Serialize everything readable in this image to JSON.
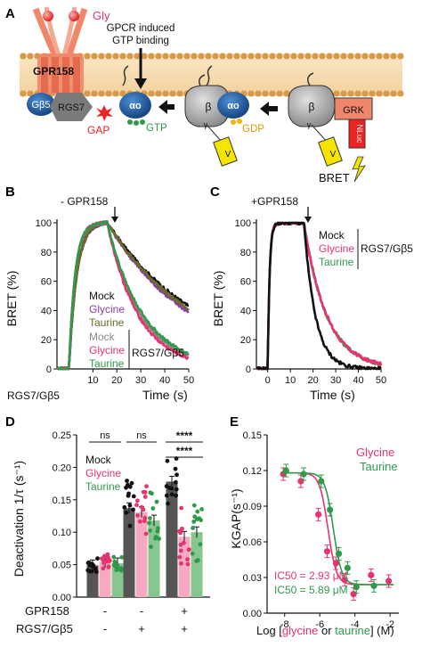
{
  "panelA": {
    "letter": "A",
    "gly": "Gly",
    "gpcr_text_1": "GPCR induced",
    "gpcr_text_2": "GTP binding",
    "gpr158": "GPR158",
    "gb5": "Gβ5",
    "rgs7": "RGS7",
    "gap": "GAP",
    "alpha": "αo",
    "gtp": "GTP",
    "gdp": "GDP",
    "beta": "β",
    "gamma": "γ",
    "v": "V",
    "grk": "GRK",
    "nluc": "NLuc",
    "bret": "BRET"
  },
  "panelB": {
    "letter": "B",
    "top_label": "- GPR158",
    "ylabel": "BRET (%)",
    "xlabel": "Time (s)",
    "bottom_left": "RGS7/Gβ5",
    "legend1": [
      "Mock",
      "Glycine",
      "Taurine"
    ],
    "legend2": [
      "Mock",
      "Glycine",
      "Taurine"
    ],
    "legend2_group": "RGS7/Gβ5",
    "xticks": [
      "10",
      "20",
      "30",
      "40",
      "50"
    ],
    "yticks": [
      "0",
      "20",
      "40",
      "60",
      "80",
      "100"
    ]
  },
  "panelC": {
    "letter": "C",
    "top_label": "+GPR158",
    "ylabel": "BRET (%)",
    "xlabel": "Time (s)",
    "legend": [
      "Mock",
      "Glycine",
      "Taurine"
    ],
    "legend_group": "RGS7/Gβ5",
    "xticks": [
      "0",
      "10",
      "20",
      "30",
      "40",
      "50"
    ],
    "yticks": [
      "0",
      "20",
      "40",
      "60",
      "80",
      "100"
    ]
  },
  "panelD": {
    "letter": "D",
    "ylabel": "Deactivation 1/τ (s⁻¹)",
    "legend": [
      "Mock",
      "Glycine",
      "Taurine"
    ],
    "sig": [
      "ns",
      "ns",
      "****",
      "****"
    ],
    "row1_label": "GPR158",
    "row2_label": "RGS7/Gβ5",
    "row1_marks": [
      "-",
      "-",
      "+"
    ],
    "row2_marks": [
      "-",
      "+",
      "+"
    ],
    "yticks": [
      "0.00",
      "0.05",
      "0.10",
      "0.15",
      "0.20",
      "0.25"
    ]
  },
  "panelE": {
    "letter": "E",
    "ylabel": "KGAP(s⁻¹)",
    "legend": [
      "Glycine",
      "Taurine"
    ],
    "ic50_gly": "IC50 = 2.93 μM",
    "ic50_tau": "IC50 = 5.89 μM",
    "xlabel_parts": [
      "Log [",
      "glycine",
      " or ",
      "taurine",
      "] (M)"
    ],
    "xticks": [
      "-8",
      "-6",
      "-4",
      "-2"
    ],
    "yticks": [
      "0.00",
      "0.03",
      "0.06",
      "0.09",
      "0.12",
      "0.15"
    ]
  },
  "colors": {
    "mock": "#111111",
    "glycine": "#e8336f",
    "taurine": "#2f9a4a",
    "glycine_purple": "#8b3fa8",
    "taurine_olive": "#6b6a2a",
    "mock_gray": "#8a8a8a",
    "membrane": "#f4d5a6",
    "receptor": "#f0866a",
    "protein_blue": "#1f5fa8",
    "rgs_gray": "#7a7a7a",
    "yellow": "#f4e400"
  },
  "chart_data": [
    {
      "panel": "B",
      "type": "line",
      "xlabel": "Time (s)",
      "ylabel": "BRET (%)",
      "xlim": [
        -5,
        50
      ],
      "ylim": [
        0,
        100
      ],
      "light_on": [
        0,
        16
      ],
      "series": [
        {
          "name": "Mock",
          "group": "-",
          "tau": 40
        },
        {
          "name": "Glycine",
          "group": "-",
          "tau": 36
        },
        {
          "name": "Taurine",
          "group": "-",
          "tau": 38
        },
        {
          "name": "Mock",
          "group": "RGS7/Gβ5",
          "tau": 14
        },
        {
          "name": "Glycine",
          "group": "RGS7/Gβ5",
          "tau": 13
        },
        {
          "name": "Taurine",
          "group": "RGS7/Gβ5",
          "tau": 15
        }
      ]
    },
    {
      "panel": "C",
      "type": "line",
      "xlabel": "Time (s)",
      "ylabel": "BRET (%)",
      "xlim": [
        -5,
        50
      ],
      "ylim": [
        0,
        100
      ],
      "light_on": [
        0,
        16
      ],
      "series": [
        {
          "name": "Mock",
          "group": "RGS7/Gβ5",
          "tau": 5
        },
        {
          "name": "Glycine",
          "group": "RGS7/Gβ5",
          "tau": 10
        },
        {
          "name": "Taurine",
          "group": "RGS7/Gβ5",
          "tau": 10
        }
      ]
    },
    {
      "panel": "D",
      "type": "bar",
      "ylabel": "Deactivation 1/τ (s⁻¹)",
      "ylim": [
        0,
        0.25
      ],
      "groups": [
        {
          "gpr158": "-",
          "rgs7": "-",
          "values": {
            "Mock": 0.049,
            "Glycine": 0.054,
            "Taurine": 0.052
          }
        },
        {
          "gpr158": "-",
          "rgs7": "+",
          "values": {
            "Mock": 0.137,
            "Glycine": 0.131,
            "Taurine": 0.118
          }
        },
        {
          "gpr158": "+",
          "rgs7": "+",
          "values": {
            "Mock": 0.178,
            "Glycine": 0.093,
            "Taurine": 0.1
          }
        }
      ]
    },
    {
      "panel": "E",
      "type": "scatter",
      "ylabel": "KGAP(s⁻¹)",
      "xlim": [
        -9,
        -1.5
      ],
      "ylim": [
        0,
        0.15
      ],
      "series": [
        {
          "name": "Glycine",
          "ic50_uM": 2.93,
          "x": [
            -8,
            -7,
            -6,
            -5.5,
            -5,
            -4.5,
            -4,
            -3,
            -2
          ],
          "y": [
            0.117,
            0.111,
            0.083,
            0.052,
            0.042,
            0.028,
            0.016,
            0.032,
            0.027
          ]
        },
        {
          "name": "Taurine",
          "ic50_uM": 5.89,
          "x": [
            -8,
            -7,
            -6,
            -5.5,
            -5,
            -4.5,
            -4,
            -3
          ],
          "y": [
            0.12,
            0.117,
            0.111,
            0.087,
            0.05,
            0.038,
            0.022,
            0.023
          ]
        }
      ]
    }
  ]
}
